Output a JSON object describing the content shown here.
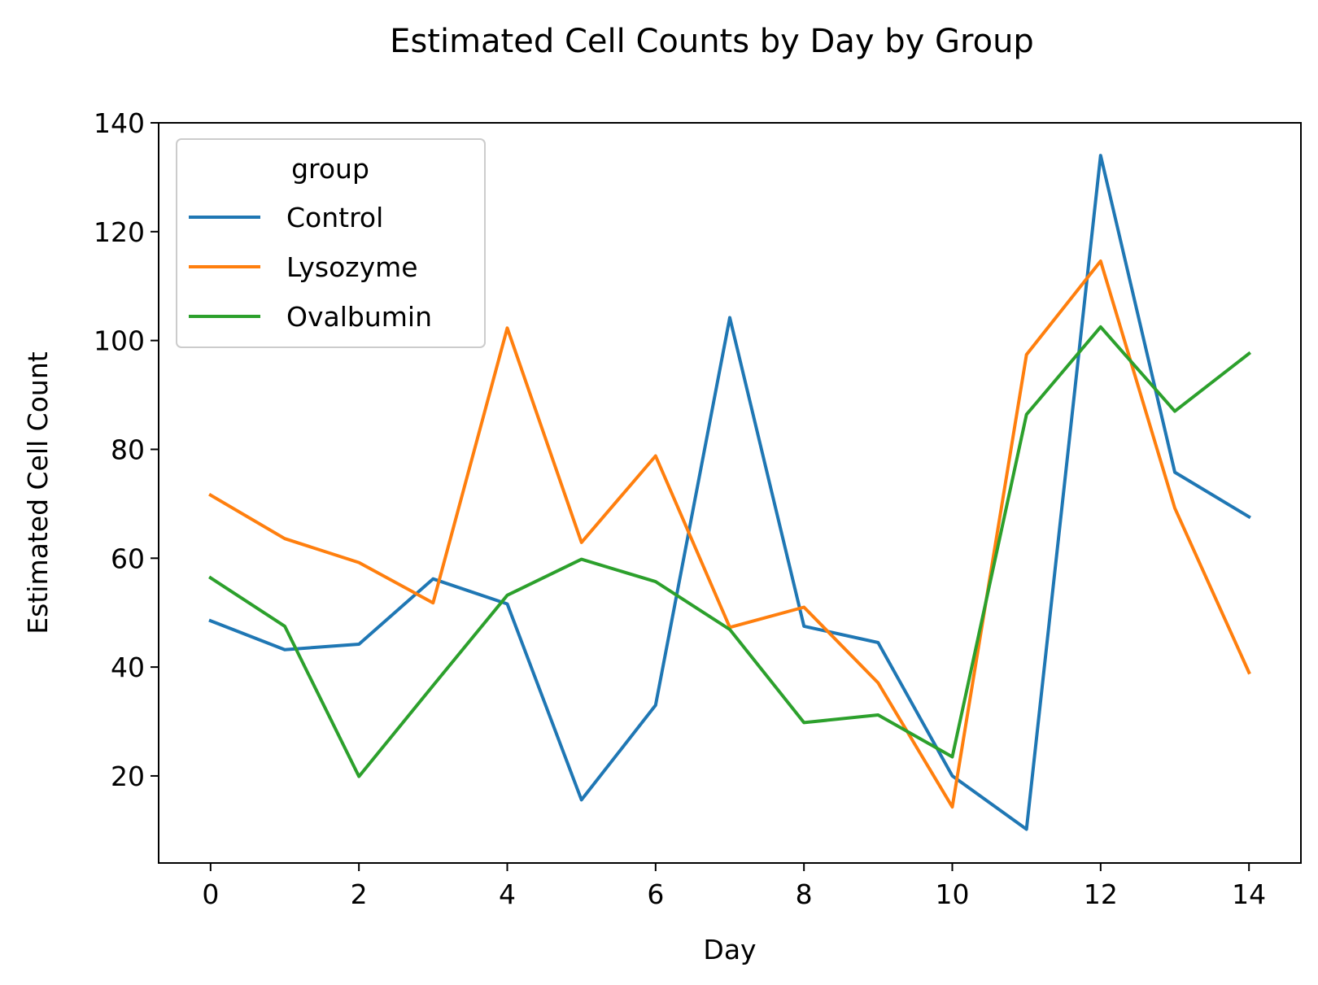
{
  "chart_data": {
    "type": "line",
    "title": "Estimated Cell Counts by Day by Group",
    "xlabel": "Day",
    "ylabel": "Estimated Cell Count",
    "xlim": [
      -0.7,
      14.7
    ],
    "ylim": [
      4,
      140
    ],
    "xticks": [
      0,
      2,
      4,
      6,
      8,
      10,
      12,
      14
    ],
    "yticks": [
      20,
      40,
      60,
      80,
      100,
      120,
      140
    ],
    "grid": false,
    "legend": {
      "title": "group",
      "placement": "upper-left"
    },
    "x": [
      0,
      1,
      2,
      3,
      4,
      5,
      6,
      7,
      8,
      9,
      10,
      11,
      12,
      13,
      14
    ],
    "series": [
      {
        "name": "Control",
        "color": "#1f77b4",
        "values": [
          48.5,
          43.2,
          44.2,
          56.2,
          51.6,
          15.6,
          33.0,
          104.2,
          47.5,
          44.5,
          20.0,
          10.2,
          134.0,
          75.8,
          67.6
        ]
      },
      {
        "name": "Lysozyme",
        "color": "#ff7f0e",
        "values": [
          71.6,
          63.6,
          59.2,
          51.8,
          102.3,
          62.9,
          78.8,
          47.3,
          51.0,
          37.1,
          14.3,
          97.4,
          114.6,
          69.2,
          39.0
        ]
      },
      {
        "name": "Ovalbumin",
        "color": "#2ca02c",
        "values": [
          56.4,
          47.5,
          19.9,
          36.6,
          53.2,
          59.8,
          55.7,
          46.9,
          29.8,
          31.2,
          23.5,
          86.4,
          102.5,
          87.0,
          97.6
        ]
      }
    ]
  }
}
